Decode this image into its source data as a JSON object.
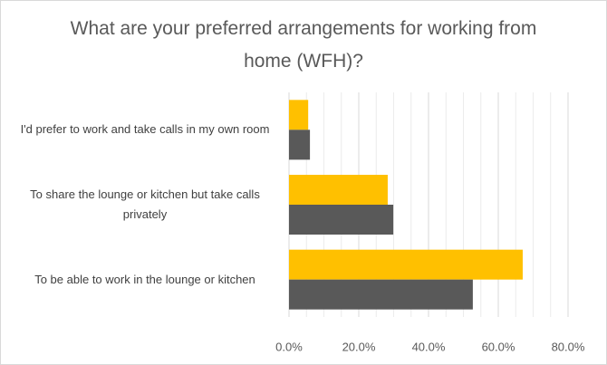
{
  "chart_data": {
    "type": "hbar",
    "title": "What are your preferred arrangements for working from home (WFH)?",
    "categories": [
      "I'd prefer to work and take calls in my own room",
      "To share the lounge or kitchen but take calls privately",
      "To be able to work in the lounge or kitchen"
    ],
    "series": [
      {
        "color": "#ffc000",
        "values": [
          5.5,
          28.3,
          67.0
        ]
      },
      {
        "color": "#595959",
        "values": [
          6.0,
          29.9,
          52.7
        ]
      }
    ],
    "xlim": [
      0,
      80
    ],
    "xticks": [
      {
        "value": 0,
        "label": "0.0%"
      },
      {
        "value": 20,
        "label": "20.0%"
      },
      {
        "value": 40,
        "label": "40.0%"
      },
      {
        "value": 60,
        "label": "60.0%"
      },
      {
        "value": 80,
        "label": "80.0%"
      }
    ],
    "minor_xticks": [
      5,
      10,
      15,
      25,
      30,
      35,
      45,
      50,
      55,
      65,
      70,
      75
    ],
    "grid": true
  }
}
